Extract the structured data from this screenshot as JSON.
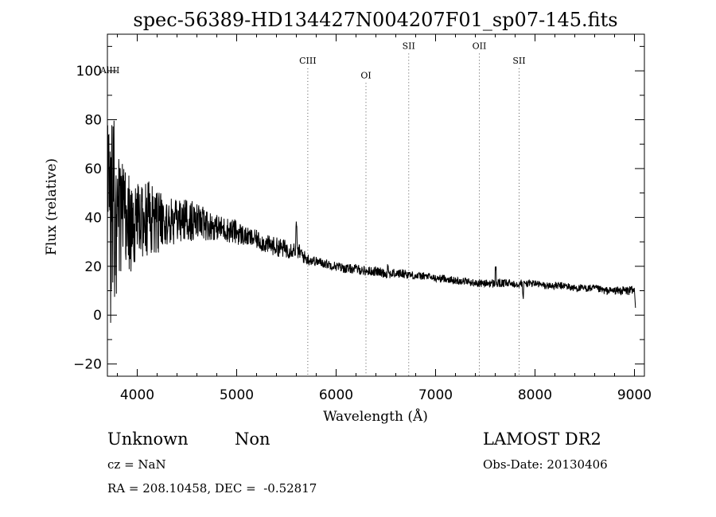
{
  "chart_data": {
    "type": "line",
    "title": "spec-56389-HD134427N004207F01_sp07-145.fits",
    "xlabel": "Wavelength (Å)",
    "ylabel": "Flux (relative)",
    "xlim": [
      3700,
      9100
    ],
    "ylim": [
      -25,
      115
    ],
    "x_ticks": [
      4000,
      5000,
      6000,
      7000,
      8000,
      9000
    ],
    "y_ticks": [
      -20,
      0,
      20,
      40,
      60,
      80,
      100
    ],
    "grid": false,
    "line_color": "#000000",
    "annotation_line_color": "#555555",
    "series": [
      {
        "x": [
          3700,
          3720,
          3740,
          3760,
          3780,
          3800,
          3850,
          3900,
          3950,
          4000,
          4100,
          4200,
          4300,
          4400,
          4500,
          4600,
          4700,
          4800,
          4900,
          5000,
          5100,
          5200,
          5300,
          5400,
          5500,
          5600,
          5650,
          5700,
          5800,
          5900,
          6000,
          6100,
          6200,
          6300,
          6400,
          6500,
          6600,
          6700,
          6800,
          6900,
          7000,
          7100,
          7200,
          7300,
          7400,
          7500,
          7600,
          7700,
          7800,
          7900,
          8000,
          8100,
          8200,
          8300,
          8400,
          8500,
          8600,
          8700,
          8800,
          8900,
          9000,
          9010
        ],
        "values": [
          60,
          50,
          45,
          40,
          42,
          38,
          40,
          38,
          36,
          38,
          40,
          38,
          38,
          38,
          39,
          38,
          37,
          36,
          35,
          34,
          32,
          31,
          29,
          28,
          27,
          27,
          25,
          23,
          22,
          21,
          20,
          19,
          19,
          18,
          18,
          17,
          17,
          17,
          16,
          16,
          15,
          15,
          14,
          14,
          13,
          13,
          13,
          13,
          13,
          13,
          13,
          12,
          12,
          12,
          11,
          11,
          11,
          10,
          10,
          10,
          10,
          3
        ],
        "noise": [
          55,
          45,
          38,
          32,
          28,
          22,
          18,
          16,
          14,
          12,
          12,
          10,
          8,
          7,
          7,
          6,
          5,
          4,
          4,
          4,
          3,
          3,
          3,
          3,
          3,
          2.5,
          2.5,
          2,
          1.5,
          1.5,
          1.5,
          1.5,
          1.5,
          1.5,
          1.5,
          1.5,
          1.5,
          1.5,
          1.2,
          1.2,
          1.2,
          1.2,
          1.2,
          1.2,
          1.2,
          1.2,
          1.5,
          1.2,
          1.5,
          1.2,
          1.2,
          1.2,
          1.2,
          1.2,
          1.2,
          1.2,
          1.2,
          1.2,
          1.2,
          1.5,
          1.5,
          1
        ]
      }
    ],
    "annotations": [
      {
        "label": "AlIII",
        "x": 3725,
        "y": 99
      },
      {
        "label": "CIII",
        "x": 5715,
        "y": 103
      },
      {
        "label": "OI",
        "x": 6300,
        "y": 97
      },
      {
        "label": "SII",
        "x": 6730,
        "y": 109
      },
      {
        "label": "OII",
        "x": 7440,
        "y": 109
      },
      {
        "label": "SII",
        "x": 7840,
        "y": 103
      }
    ]
  },
  "footer": {
    "class_label": "Unknown",
    "subclass_label": "Non",
    "survey_label": "LAMOST DR2",
    "cz_text": "cz = NaN",
    "obs_date_text": "Obs-Date: 20130406",
    "coords_text": "RA = 208.10458, DEC =  -0.52817"
  }
}
